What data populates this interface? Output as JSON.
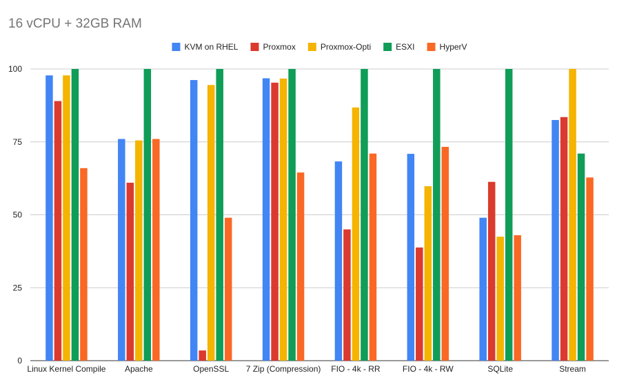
{
  "chart_data": {
    "type": "bar",
    "title": "16 vCPU + 32GB RAM",
    "xlabel": "",
    "ylabel": "",
    "ylim": [
      0,
      100
    ],
    "yticks": [
      0,
      25,
      50,
      75,
      100
    ],
    "grid": true,
    "legend_position": "top",
    "categories": [
      "Linux Kernel Compile",
      "Apache",
      "OpenSSL",
      "7 Zip (Compression)",
      "FIO - 4k - RR",
      "FIO - 4k - RW",
      "SQLite",
      "Stream"
    ],
    "series": [
      {
        "name": "KVM on RHEL",
        "color": "#4285f4",
        "values": [
          97.8,
          76.0,
          96.2,
          96.8,
          68.3,
          70.9,
          49.0,
          82.5
        ]
      },
      {
        "name": "Proxmox",
        "color": "#db3a2e",
        "values": [
          89.0,
          61.0,
          3.5,
          95.3,
          45.0,
          38.8,
          61.3,
          83.5
        ]
      },
      {
        "name": "Proxmox-Opti",
        "color": "#f4b400",
        "values": [
          97.8,
          75.5,
          94.5,
          96.7,
          86.8,
          59.8,
          42.5,
          100
        ]
      },
      {
        "name": "ESXI",
        "color": "#0f9d58",
        "values": [
          100,
          100,
          100,
          100,
          100,
          100,
          100,
          71.0
        ]
      },
      {
        "name": "HyperV",
        "color": "#fa6825",
        "values": [
          66.0,
          76.0,
          49.0,
          64.5,
          71.0,
          73.3,
          43.0,
          62.8
        ]
      }
    ]
  }
}
